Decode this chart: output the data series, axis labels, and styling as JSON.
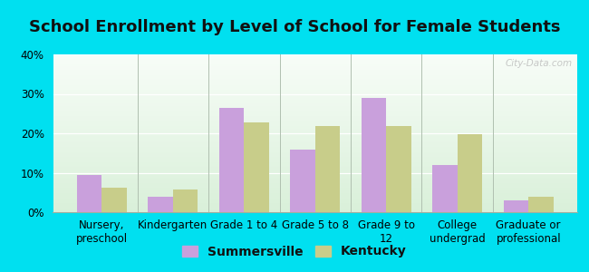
{
  "title": "School Enrollment by Level of School for Female Students",
  "categories": [
    "Nursery,\npreschool",
    "Kindergarten",
    "Grade 1 to 4",
    "Grade 5 to 8",
    "Grade 9 to\n12",
    "College\nundergrad",
    "Graduate or\nprofessional"
  ],
  "summersville": [
    9.5,
    4.0,
    26.5,
    15.8,
    29.0,
    12.0,
    3.0
  ],
  "kentucky": [
    6.2,
    5.8,
    22.8,
    21.8,
    21.8,
    19.8,
    3.8
  ],
  "summersville_color": "#c9a0dc",
  "kentucky_color": "#c8cd8a",
  "background_outer": "#00e0f0",
  "ylim": [
    0,
    40
  ],
  "yticks": [
    0,
    10,
    20,
    30,
    40
  ],
  "bar_width": 0.35,
  "title_fontsize": 13,
  "legend_fontsize": 10,
  "tick_fontsize": 8.5
}
